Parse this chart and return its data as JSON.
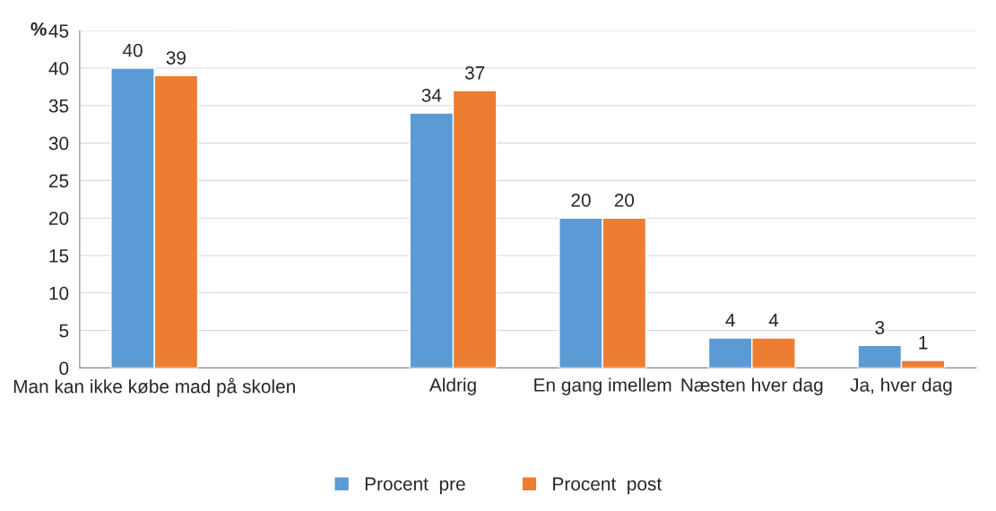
{
  "chart_data": {
    "type": "bar",
    "categories": [
      "Man kan ikke købe mad på skolen",
      null,
      "Aldrig",
      "En gang imellem",
      "Næsten hver dag",
      "Ja, hver dag"
    ],
    "series": [
      {
        "name": "Procent  pre",
        "color": "#5b9bd5",
        "values": [
          40,
          null,
          34,
          20,
          4,
          3
        ]
      },
      {
        "name": "Procent  post",
        "color": "#ed7d31",
        "values": [
          39,
          null,
          37,
          20,
          4,
          1
        ]
      }
    ],
    "ylabel": "%",
    "ylim": [
      0,
      45
    ],
    "yticks": [
      0,
      5,
      10,
      15,
      20,
      25,
      30,
      35,
      40,
      45
    ],
    "grid": "y",
    "legend": "bottom",
    "data_labels": true
  }
}
